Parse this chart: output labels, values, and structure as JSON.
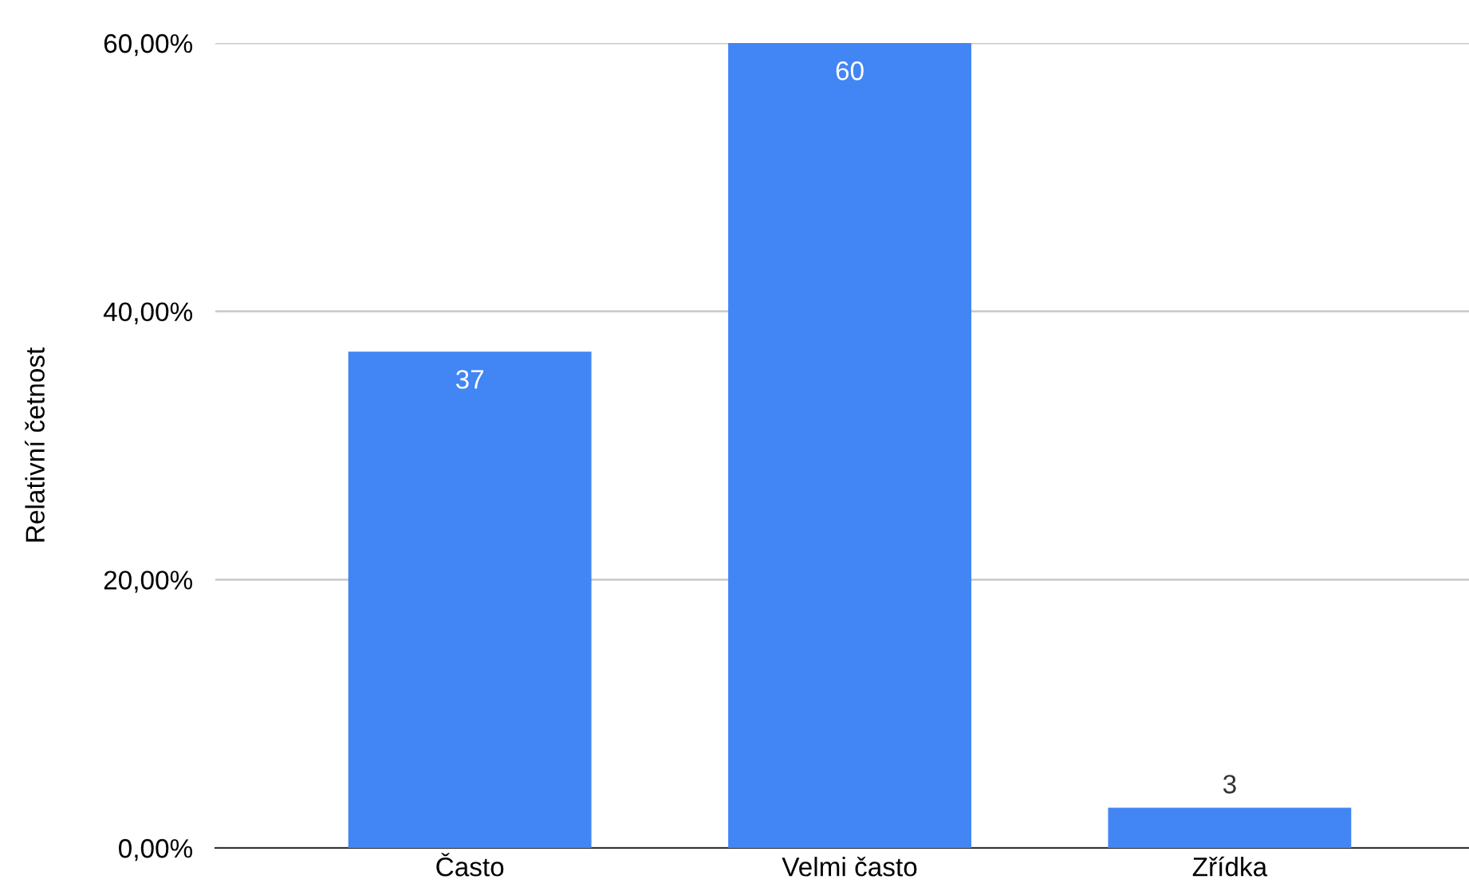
{
  "chart_data": {
    "type": "bar",
    "ylabel": "Relativní četnost",
    "categories": [
      "Často",
      "Velmi často",
      "Zřídka"
    ],
    "values": [
      37,
      60,
      3
    ],
    "color": "#4285f4",
    "ylim": [
      0,
      60
    ],
    "yticks": [
      {
        "value": 0,
        "label": "0,00%"
      },
      {
        "value": 20,
        "label": "20,00%"
      },
      {
        "value": 40,
        "label": "40,00%"
      },
      {
        "value": 60,
        "label": "60,00%"
      }
    ],
    "grid": "y",
    "data_labels": true
  }
}
